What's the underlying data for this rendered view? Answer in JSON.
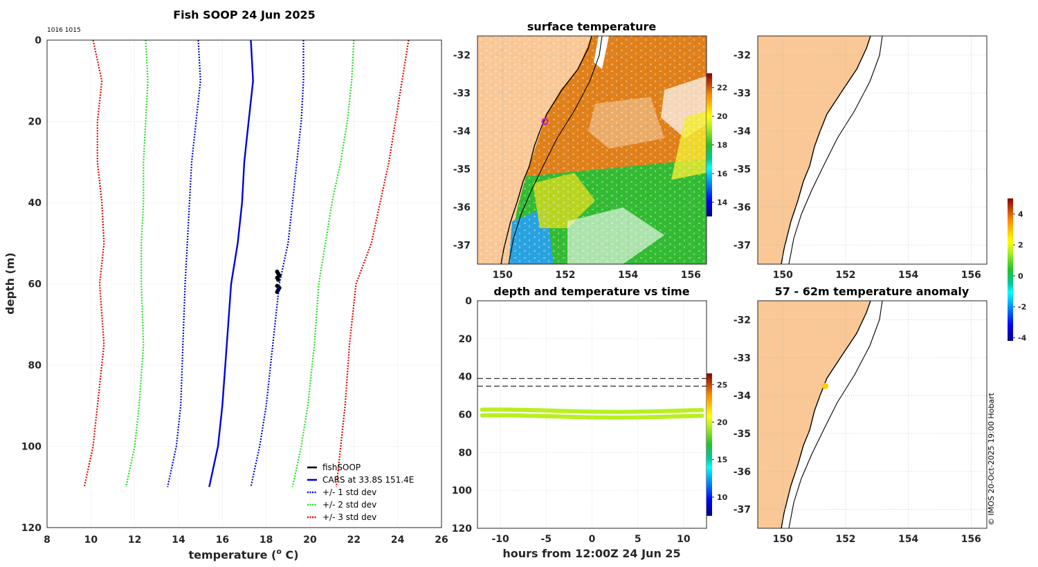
{
  "chart_data": [
    {
      "type": "line",
      "title": "Fish SOOP 24 Jun 2025",
      "id_label": "1016 1015",
      "xlabel": "temperature (",
      "xlabel_sup": "o",
      "xlabel_end": " C)",
      "ylabel": "depth (m)",
      "xlim": [
        8,
        26
      ],
      "ylim": [
        120,
        0
      ],
      "xticks": [
        "8",
        "10",
        "12",
        "14",
        "16",
        "18",
        "20",
        "22",
        "24",
        "26"
      ],
      "yticks": [
        "0",
        "20",
        "40",
        "60",
        "80",
        "100",
        "120"
      ],
      "grid": true,
      "legend_position": "bottom-right",
      "depths": [
        0,
        10,
        20,
        30,
        40,
        50,
        60,
        75,
        90,
        100,
        110
      ],
      "series": [
        {
          "name": "fishSOOP",
          "color": "#000000",
          "style": "points",
          "points": [
            [
              18.5,
              57
            ],
            [
              18.55,
              57.5
            ],
            [
              18.6,
              58
            ],
            [
              18.5,
              58.5
            ],
            [
              18.55,
              59
            ],
            [
              18.5,
              60.5
            ],
            [
              18.6,
              61
            ],
            [
              18.55,
              61.5
            ],
            [
              18.5,
              62
            ]
          ]
        },
        {
          "name": "CARS at 33.8S 151.4E",
          "color": "#0000dd",
          "style": "solid",
          "values": [
            17.3,
            17.4,
            17.2,
            17.0,
            16.9,
            16.7,
            16.4,
            16.2,
            16.0,
            15.8,
            15.4
          ]
        },
        {
          "name": "+/- 1 std dev",
          "color": "#0000dd",
          "style": "dotted",
          "values": [
            14.9,
            15.0,
            14.8,
            14.6,
            14.5,
            14.4,
            14.3,
            14.2,
            14.1,
            13.9,
            13.5
          ],
          "values_upper": [
            19.7,
            19.7,
            19.6,
            19.4,
            19.2,
            19.0,
            18.6,
            18.3,
            18.0,
            17.7,
            17.3
          ]
        },
        {
          "name": "+/- 2 std dev",
          "color": "#22dd22",
          "style": "dotted",
          "values": [
            12.5,
            12.6,
            12.5,
            12.4,
            12.4,
            12.3,
            12.3,
            12.4,
            12.2,
            12.0,
            11.6
          ],
          "values_upper": [
            22.0,
            21.9,
            21.7,
            21.4,
            21.0,
            20.7,
            20.4,
            20.2,
            19.9,
            19.6,
            19.2
          ]
        },
        {
          "name": "+/- 3 std dev",
          "color": "#dd0000",
          "style": "dotted",
          "values": [
            10.1,
            10.5,
            10.3,
            10.3,
            10.5,
            10.6,
            10.4,
            10.6,
            10.3,
            10.1,
            9.7
          ],
          "values_upper": [
            24.5,
            24.2,
            23.9,
            23.6,
            23.2,
            22.8,
            22.1,
            21.8,
            21.6,
            21.4,
            21.2
          ]
        }
      ]
    },
    {
      "type": "heatmap",
      "title": "surface temperature",
      "xticks": [
        "150",
        "152",
        "154",
        "156"
      ],
      "yticks": [
        "-32",
        "-33",
        "-34",
        "-35",
        "-36",
        "-37"
      ],
      "xlim": [
        149.2,
        156.5
      ],
      "ylim": [
        -37.5,
        -31.5
      ],
      "colorbar_ticks": [
        "14",
        "16",
        "18",
        "20",
        "22"
      ],
      "colorbar_range": [
        13,
        23
      ],
      "marker": {
        "lon": 151.35,
        "lat": -33.75,
        "color": "#cc22cc"
      }
    },
    {
      "type": "line",
      "title": "",
      "xticks": [
        "150",
        "152",
        "154",
        "156"
      ],
      "yticks": [
        "-32",
        "-33",
        "-34",
        "-35",
        "-36",
        "-37"
      ],
      "xlim": [
        149.2,
        156.5
      ],
      "ylim": [
        -37.5,
        -31.5
      ],
      "colorbar_ticks": [
        "4",
        "2",
        "0",
        "-2",
        "-4"
      ],
      "colorbar_range": [
        -4.2,
        5
      ]
    },
    {
      "type": "scatter",
      "title": "depth and temperature vs time",
      "xlabel": "hours from 12:00Z 24 Jun 25",
      "xticks": [
        "-10",
        "-5",
        "0",
        "5",
        "10"
      ],
      "yticks": [
        "0",
        "20",
        "40",
        "60",
        "80",
        "100",
        "120"
      ],
      "xlim": [
        -12.5,
        12.5
      ],
      "ylim": [
        120,
        0
      ],
      "dashed_depths": [
        41,
        45
      ],
      "tracks_depth": [
        58,
        61
      ],
      "track_color": "#b8f020",
      "colorbar_ticks": [
        "25",
        "20",
        "15",
        "10"
      ],
      "colorbar_range": [
        7.5,
        26.5
      ]
    },
    {
      "type": "scatter",
      "title": "57 - 62m temperature anomaly",
      "xticks": [
        "150",
        "152",
        "154",
        "156"
      ],
      "yticks": [
        "-32",
        "-33",
        "-34",
        "-35",
        "-36",
        "-37"
      ],
      "xlim": [
        149.2,
        156.5
      ],
      "ylim": [
        -37.5,
        -31.5
      ],
      "marker": {
        "lon": 151.35,
        "lat": -33.75,
        "color": "#ffcc00"
      }
    }
  ],
  "copyright": "© IMOS 20-Oct-2025 19:00 Hobart"
}
